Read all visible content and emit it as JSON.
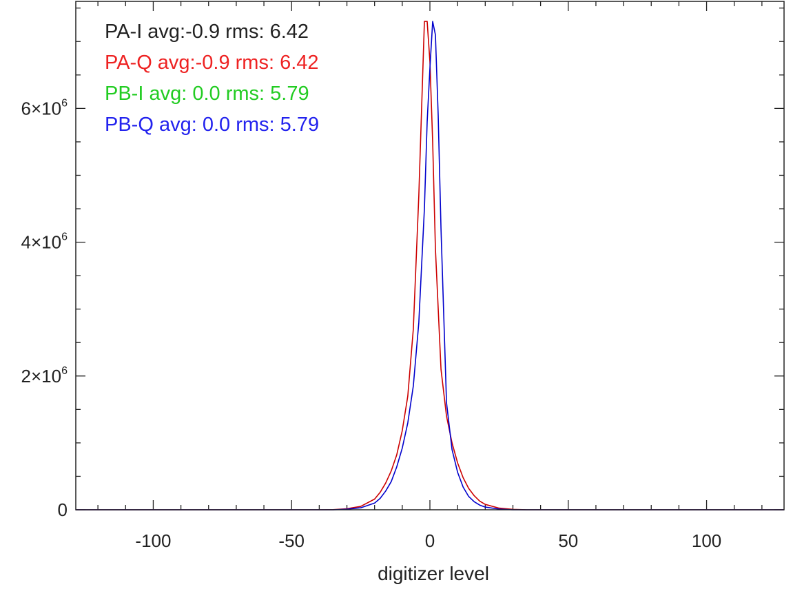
{
  "chart_data": {
    "type": "line",
    "title": "",
    "xlabel": "digitizer level",
    "ylabel": "",
    "xlim": [
      -128,
      128
    ],
    "ylim": [
      0,
      7600000
    ],
    "xticks": [
      -100,
      -50,
      0,
      50,
      100
    ],
    "xtick_labels": [
      "-100",
      "-50",
      "0",
      "50",
      "100"
    ],
    "x_minor_step": 10,
    "yticks": [
      0,
      2000000,
      4000000,
      6000000
    ],
    "ytick_labels": [
      {
        "base": "0",
        "exp": ""
      },
      {
        "base": "2×10",
        "exp": "6"
      },
      {
        "base": "4×10",
        "exp": "6"
      },
      {
        "base": "6×10",
        "exp": "6"
      }
    ],
    "y_minor_step": 500000,
    "grid": false,
    "legend_position": "top-left",
    "legend": [
      {
        "text": "PA-I avg:-0.9 rms: 6.42",
        "color": "#222222"
      },
      {
        "text": "PA-Q avg:-0.9 rms: 6.42",
        "color": "#ee2222"
      },
      {
        "text": "PB-I avg: 0.0 rms: 5.79",
        "color": "#22cc22"
      },
      {
        "text": "PB-Q avg: 0.0 rms: 5.79",
        "color": "#2222ee"
      }
    ],
    "series": [
      {
        "color": "#cc0000",
        "x": [
          -128,
          -40,
          -35,
          -30,
          -25,
          -20,
          -18,
          -16,
          -14,
          -12,
          -10,
          -8,
          -6,
          -4,
          -2,
          -1,
          0,
          1,
          2,
          4,
          6,
          8,
          10,
          12,
          14,
          16,
          18,
          20,
          25,
          30,
          35,
          128
        ],
        "y": [
          0,
          0,
          2000,
          15000,
          50000,
          160000,
          260000,
          400000,
          580000,
          820000,
          1180000,
          1700000,
          2700000,
          4700000,
          7300000,
          7300000,
          6700000,
          5500000,
          3900000,
          2100000,
          1400000,
          1000000,
          700000,
          480000,
          320000,
          210000,
          130000,
          80000,
          25000,
          6000,
          0,
          0
        ]
      },
      {
        "color": "#0000cc",
        "x": [
          -128,
          -35,
          -30,
          -25,
          -20,
          -18,
          -16,
          -14,
          -12,
          -10,
          -8,
          -6,
          -4,
          -2,
          -1,
          0,
          1,
          2,
          3,
          4,
          6,
          8,
          10,
          12,
          14,
          16,
          18,
          20,
          25,
          30,
          128
        ],
        "y": [
          0,
          0,
          8000,
          30000,
          100000,
          170000,
          280000,
          420000,
          640000,
          920000,
          1300000,
          1850000,
          2800000,
          4500000,
          5800000,
          6600000,
          7300000,
          7100000,
          5900000,
          4200000,
          1600000,
          900000,
          560000,
          340000,
          200000,
          120000,
          70000,
          40000,
          10000,
          0,
          0
        ]
      }
    ]
  }
}
